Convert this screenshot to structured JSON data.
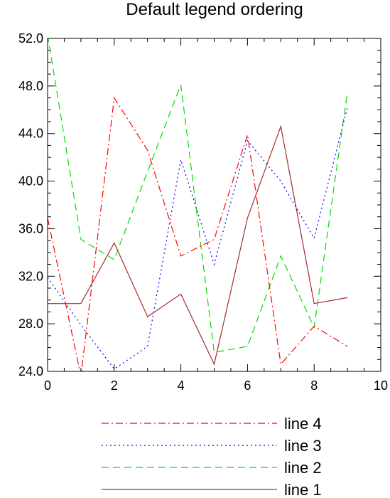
{
  "chart_data": {
    "type": "line",
    "title": "Default legend ordering",
    "xlabel": "",
    "ylabel": "",
    "xlim": [
      0,
      10
    ],
    "ylim": [
      24,
      52
    ],
    "x_ticks": [
      0,
      2,
      4,
      6,
      8,
      10
    ],
    "x_tick_labels": [
      "0",
      "2",
      "4",
      "6",
      "8",
      "10"
    ],
    "y_ticks": [
      24,
      28,
      32,
      36,
      40,
      44,
      48,
      52
    ],
    "y_tick_labels": [
      "24.0",
      "28.0",
      "32.0",
      "36.0",
      "40.0",
      "44.0",
      "48.0",
      "52.0"
    ],
    "grid": false,
    "legend_position": "bottom",
    "x": [
      0,
      1,
      2,
      3,
      4,
      5,
      6,
      7,
      8,
      9
    ],
    "series": [
      {
        "name": "line 1",
        "color": "#a52a2a",
        "dash": "solid",
        "values": [
          29.7,
          29.7,
          34.8,
          28.6,
          30.5,
          24.6,
          36.9,
          44.6,
          29.7,
          30.2
        ]
      },
      {
        "name": "line 2",
        "color": "#00dd00",
        "dash": "dash",
        "values": [
          52.3,
          35.1,
          33.4,
          40.8,
          48.1,
          25.6,
          26.1,
          33.7,
          27.7,
          47.5
        ]
      },
      {
        "name": "line 3",
        "color": "#0000ff",
        "dash": "dot",
        "values": [
          31.9,
          27.9,
          24.2,
          26.1,
          41.8,
          33.0,
          43.4,
          40.0,
          35.2,
          46.2
        ]
      },
      {
        "name": "line 4",
        "color": "#ff0000",
        "dash": "dashdot",
        "values": [
          36.9,
          23.6,
          47.0,
          42.6,
          33.7,
          35.1,
          43.9,
          24.6,
          27.8,
          26.1
        ]
      }
    ],
    "legend_order": [
      "line 4",
      "line 3",
      "line 2",
      "line 1"
    ]
  }
}
